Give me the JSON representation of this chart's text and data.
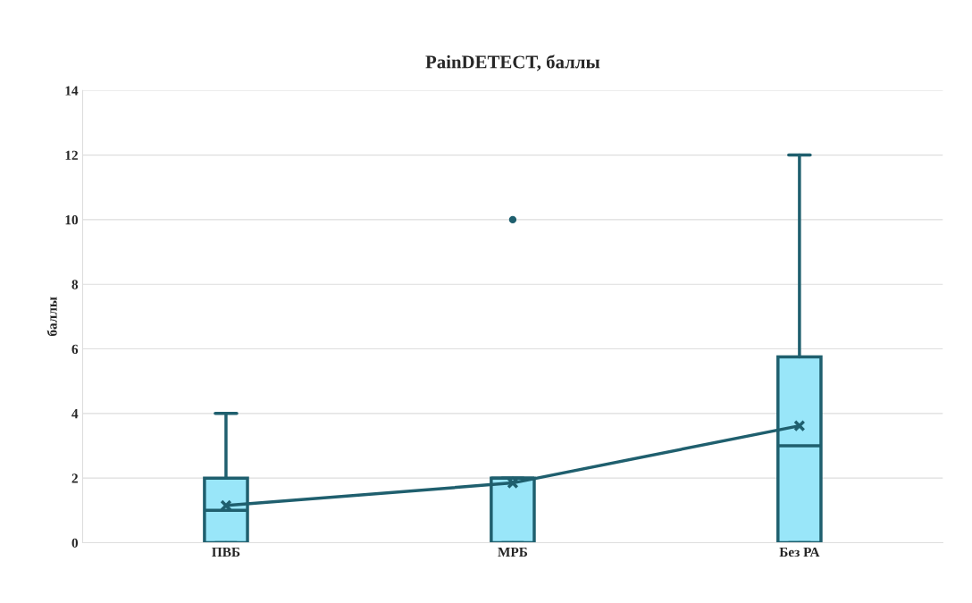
{
  "chart_data": {
    "type": "box",
    "title": "PainDETECT, баллы",
    "ylabel": "баллы",
    "categories": [
      "ПВБ",
      "МРБ",
      "Без РА"
    ],
    "boxes": [
      {
        "low": 0,
        "q1": 0,
        "median": 1,
        "q3": 2,
        "high": 4
      },
      {
        "low": 0,
        "q1": 0,
        "median": 2,
        "q3": 2,
        "high": 2,
        "outliers": [
          10
        ]
      },
      {
        "low": 0,
        "q1": 0,
        "median": 3,
        "q3": 5.75,
        "high": 12
      }
    ],
    "color": "#99e6f9",
    "series": [
      {
        "type": "line",
        "x": [
          "ПВБ",
          "МРБ",
          "Без РА"
        ],
        "values": [
          1.15,
          1.85,
          3.62
        ],
        "color": "#1f5f6e",
        "marker": "cross"
      }
    ],
    "ylim": [
      0,
      14
    ],
    "yticks": [
      0,
      2,
      4,
      6,
      8,
      10,
      12,
      14
    ],
    "grid": "y",
    "legend": false
  }
}
